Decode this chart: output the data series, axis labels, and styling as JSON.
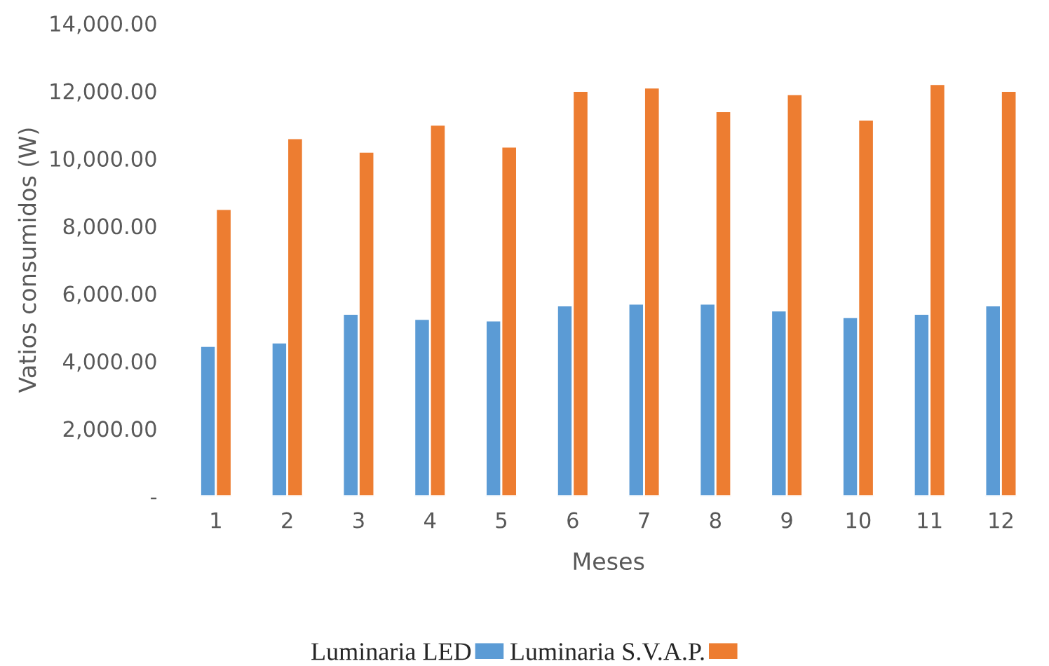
{
  "chart_data": {
    "type": "bar",
    "xlabel": "Meses",
    "ylabel": "Vatios consumidos (W)",
    "categories": [
      "1",
      "2",
      "3",
      "4",
      "5",
      "6",
      "7",
      "8",
      "9",
      "10",
      "11",
      "12"
    ],
    "series": [
      {
        "name": "Luminaria LED",
        "color": "#5b9bd5",
        "values": [
          4450,
          4550,
          5400,
          5250,
          5200,
          5650,
          5700,
          5700,
          5500,
          5300,
          5400,
          5650
        ]
      },
      {
        "name": "Luminaria S.V.A.P.",
        "color": "#ed7d31",
        "values": [
          8500,
          10600,
          10200,
          11000,
          10350,
          12000,
          12100,
          11400,
          11900,
          11150,
          12200,
          12000
        ]
      }
    ],
    "ylim": [
      0,
      14000
    ],
    "yticks": [
      {
        "value": 0,
        "label": "-"
      },
      {
        "value": 2000,
        "label": "2,000.00"
      },
      {
        "value": 4000,
        "label": "4,000.00"
      },
      {
        "value": 6000,
        "label": "6,000.00"
      },
      {
        "value": 8000,
        "label": "8,000.00"
      },
      {
        "value": 10000,
        "label": "10,000.00"
      },
      {
        "value": 12000,
        "label": "12,000.00"
      },
      {
        "value": 14000,
        "label": "14,000.00"
      }
    ],
    "grid": false,
    "legend": "bottom"
  }
}
